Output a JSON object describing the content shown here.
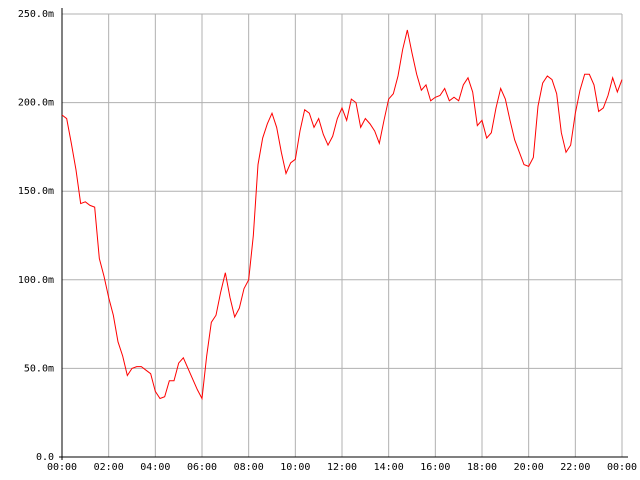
{
  "chart_data": {
    "type": "line",
    "color": "#ff0000",
    "grid": true,
    "x": [
      0,
      0.2,
      0.4,
      0.6,
      0.8,
      1,
      1.2,
      1.4,
      1.6,
      1.8,
      2,
      2.2,
      2.4,
      2.6,
      2.8,
      3,
      3.2,
      3.4,
      3.6,
      3.8,
      4,
      4.2,
      4.4,
      4.6,
      4.8,
      5,
      5.2,
      5.4,
      5.6,
      5.8,
      6,
      6.2,
      6.4,
      6.6,
      6.8,
      7,
      7.2,
      7.4,
      7.6,
      7.8,
      8,
      8.2,
      8.4,
      8.6,
      8.8,
      9,
      9.2,
      9.4,
      9.6,
      9.8,
      10,
      10.2,
      10.4,
      10.6,
      10.8,
      11,
      11.2,
      11.4,
      11.6,
      11.8,
      12,
      12.2,
      12.4,
      12.6,
      12.8,
      13,
      13.2,
      13.4,
      13.6,
      13.8,
      14,
      14.2,
      14.4,
      14.6,
      14.8,
      15,
      15.2,
      15.4,
      15.6,
      15.8,
      16,
      16.2,
      16.4,
      16.6,
      16.8,
      17,
      17.2,
      17.4,
      17.6,
      17.8,
      18,
      18.2,
      18.4,
      18.6,
      18.8,
      19,
      19.2,
      19.4,
      19.6,
      19.8,
      20,
      20.2,
      20.4,
      20.6,
      20.8,
      21,
      21.2,
      21.4,
      21.6,
      21.8,
      22,
      22.2,
      22.4,
      22.6,
      22.8,
      23,
      23.2,
      23.4,
      23.6,
      23.8,
      24
    ],
    "values": [
      0.193,
      0.191,
      0.177,
      0.162,
      0.143,
      0.144,
      0.142,
      0.141,
      0.112,
      0.102,
      0.09,
      0.08,
      0.065,
      0.057,
      0.046,
      0.05,
      0.051,
      0.051,
      0.049,
      0.047,
      0.037,
      0.033,
      0.034,
      0.043,
      0.043,
      0.053,
      0.056,
      0.05,
      0.044,
      0.038,
      0.033,
      0.057,
      0.076,
      0.08,
      0.093,
      0.104,
      0.09,
      0.079,
      0.084,
      0.095,
      0.1,
      0.125,
      0.165,
      0.18,
      0.188,
      0.194,
      0.186,
      0.172,
      0.16,
      0.166,
      0.168,
      0.184,
      0.196,
      0.194,
      0.186,
      0.191,
      0.182,
      0.176,
      0.181,
      0.191,
      0.197,
      0.19,
      0.202,
      0.2,
      0.186,
      0.191,
      0.188,
      0.184,
      0.177,
      0.19,
      0.202,
      0.205,
      0.215,
      0.23,
      0.241,
      0.228,
      0.216,
      0.207,
      0.21,
      0.201,
      0.203,
      0.204,
      0.208,
      0.201,
      0.203,
      0.201,
      0.21,
      0.214,
      0.206,
      0.187,
      0.19,
      0.18,
      0.183,
      0.197,
      0.208,
      0.202,
      0.19,
      0.179,
      0.172,
      0.165,
      0.164,
      0.169,
      0.198,
      0.211,
      0.215,
      0.213,
      0.205,
      0.183,
      0.172,
      0.176,
      0.194,
      0.207,
      0.216,
      0.216,
      0.21,
      0.195,
      0.197,
      0.204,
      0.214,
      0.206,
      0.213
    ],
    "xlim": [
      0,
      24
    ],
    "xticks": [
      {
        "value": 0,
        "label": "00:00"
      },
      {
        "value": 2,
        "label": "02:00"
      },
      {
        "value": 4,
        "label": "04:00"
      },
      {
        "value": 6,
        "label": "06:00"
      },
      {
        "value": 8,
        "label": "08:00"
      },
      {
        "value": 10,
        "label": "10:00"
      },
      {
        "value": 12,
        "label": "12:00"
      },
      {
        "value": 14,
        "label": "14:00"
      },
      {
        "value": 16,
        "label": "16:00"
      },
      {
        "value": 18,
        "label": "18:00"
      },
      {
        "value": 20,
        "label": "20:00"
      },
      {
        "value": 22,
        "label": "22:00"
      },
      {
        "value": 24,
        "label": "00:00"
      }
    ],
    "ylim": [
      0,
      0.25
    ],
    "yticks": [
      {
        "value": 0,
        "label": "0.0"
      },
      {
        "value": 0.05,
        "label": "50.0m"
      },
      {
        "value": 0.1,
        "label": "100.0m"
      },
      {
        "value": 0.15,
        "label": "150.0m"
      },
      {
        "value": 0.2,
        "label": "200.0m"
      },
      {
        "value": 0.25,
        "label": "250.0m"
      }
    ]
  }
}
